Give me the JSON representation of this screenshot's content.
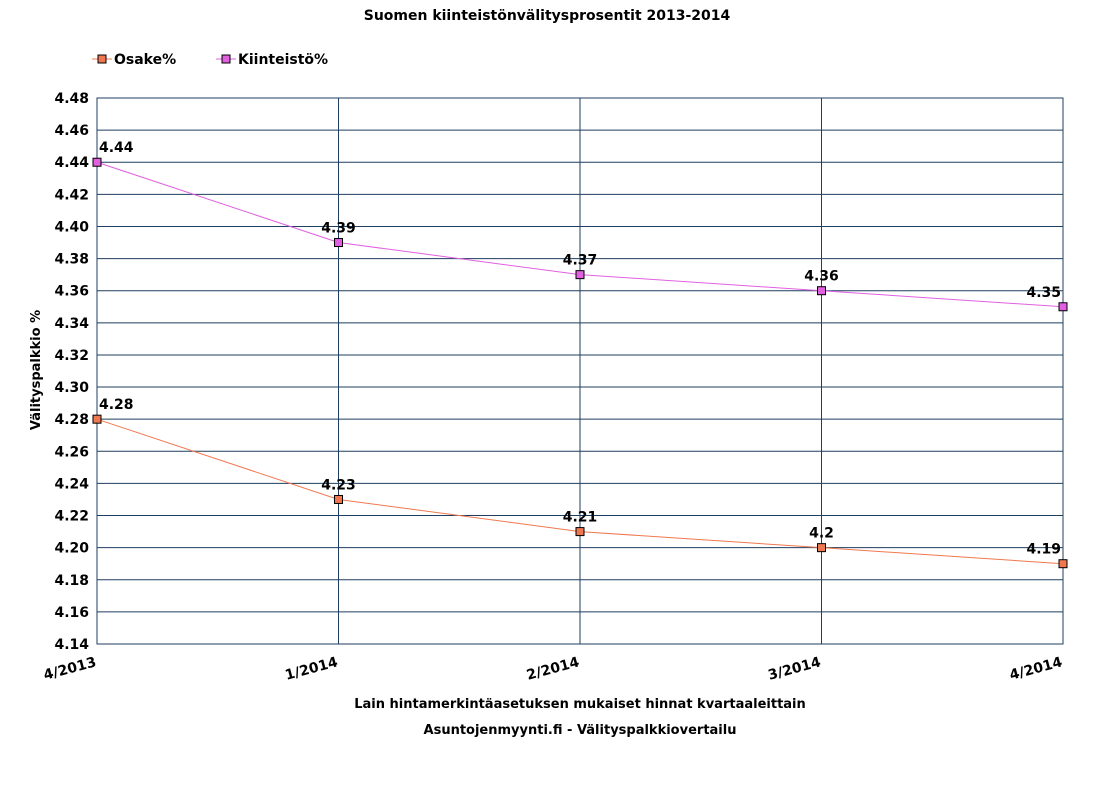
{
  "chart_data": {
    "type": "line",
    "title": "Suomen kiinteistönvälitysprosentit 2013-2014",
    "xlabel": "Lain hintamerkintäasetuksen mukaiset hinnat kvartaaleittain",
    "subtitle": "Asuntojenmyynti.fi - Välityspalkkiovertailu",
    "ylabel": "Välityspalkkio %",
    "categories": [
      "4/2013",
      "1/2014",
      "2/2014",
      "3/2014",
      "4/2014"
    ],
    "ylim": [
      4.14,
      4.48
    ],
    "yticks": [
      "4.48",
      "4.46",
      "4.44",
      "4.42",
      "4.40",
      "4.38",
      "4.36",
      "4.34",
      "4.32",
      "4.30",
      "4.28",
      "4.26",
      "4.24",
      "4.22",
      "4.20",
      "4.18",
      "4.16",
      "4.14"
    ],
    "grid": true,
    "legend_position": "top-left",
    "series": [
      {
        "name": "Osake%",
        "color": "#f07850",
        "values": [
          4.28,
          4.23,
          4.21,
          4.2,
          4.19
        ],
        "labels": [
          "4.28",
          "4.23",
          "4.21",
          "4.2",
          "4.19"
        ]
      },
      {
        "name": "Kiinteistö%",
        "color": "#e060e0",
        "values": [
          4.44,
          4.39,
          4.37,
          4.36,
          4.35
        ],
        "labels": [
          "4.44",
          "4.39",
          "4.37",
          "4.36",
          "4.35"
        ]
      }
    ]
  }
}
